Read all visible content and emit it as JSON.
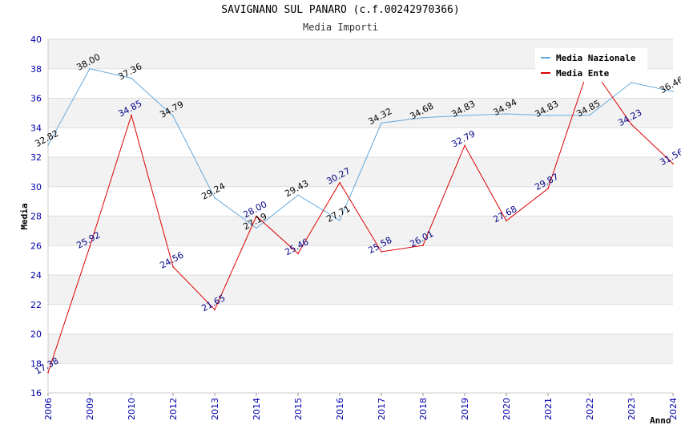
{
  "chart_data": {
    "type": "line",
    "title": "SAVIGNANO SUL PANARO (c.f.00242970366)",
    "subtitle": "Media Importi",
    "xlabel": "Anno",
    "ylabel": "Media",
    "ylim": [
      16,
      40
    ],
    "yticks": [
      "16",
      "18",
      "20",
      "22",
      "24",
      "26",
      "28",
      "30",
      "32",
      "34",
      "36",
      "38",
      "40"
    ],
    "categories": [
      "2006",
      "2009",
      "2010",
      "2012",
      "2013",
      "2014",
      "2015",
      "2016",
      "2017",
      "2018",
      "2019",
      "2020",
      "2021",
      "2022",
      "2023",
      "2024"
    ],
    "legend_position": "top-right",
    "grid": true,
    "series": [
      {
        "name": "Media Nazionale",
        "color": "#66aadd",
        "values": [
          32.82,
          38.0,
          37.36,
          34.79,
          29.24,
          27.19,
          29.43,
          27.71,
          34.32,
          34.68,
          34.83,
          34.94,
          34.83,
          34.85,
          37.06,
          36.46
        ],
        "labels": [
          "32.82",
          "38.00",
          "37.36",
          "34.79",
          "29.24",
          "27.19",
          "29.43",
          "27.71",
          "34.32",
          "34.68",
          "34.83",
          "34.94",
          "34.83",
          "34.85",
          "",
          "36.46"
        ]
      },
      {
        "name": "Media Ente",
        "color": "#dd0000",
        "values": [
          17.38,
          25.92,
          34.85,
          24.56,
          21.65,
          28.0,
          25.46,
          30.27,
          25.58,
          26.01,
          32.79,
          27.68,
          29.87,
          38.3,
          34.23,
          31.56
        ],
        "labels": [
          "17.38",
          "25.92",
          "34.85",
          "24.56",
          "21.65",
          "28.00",
          "25.46",
          "30.27",
          "25.58",
          "26.01",
          "32.79",
          "27.68",
          "29.87",
          "",
          "34.23",
          "31.56"
        ]
      }
    ]
  }
}
